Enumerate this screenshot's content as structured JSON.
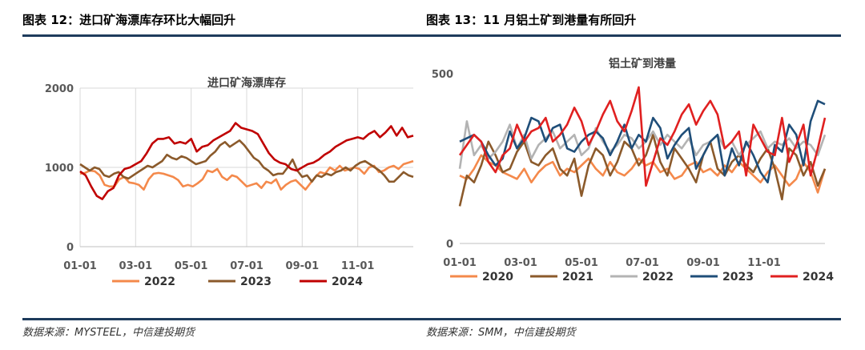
{
  "left": {
    "figure_title": "图表 12：进口矿海漂库存环比大幅回升",
    "source": "数据来源：MYSTEEL，中信建投期货"
  },
  "right": {
    "figure_title": "图表 13：11 月铝土矿到港量有所回升",
    "source": "数据来源：SMM，中信建投期货"
  },
  "chart_data": [
    {
      "type": "line",
      "title": "进口矿海漂库存",
      "xlabel": "",
      "ylabel": "",
      "ylim": [
        0,
        2000
      ],
      "yticks": [
        "0",
        "1000",
        "2000"
      ],
      "xticks": [
        "01-01",
        "03-01",
        "05-01",
        "07-01",
        "09-01",
        "11-01"
      ],
      "xrange": [
        1,
        52
      ],
      "grid": true,
      "legend": "bottom",
      "series": [
        {
          "name": "2022",
          "color": "#f4894b",
          "values": [
            920,
            930,
            960,
            950,
            900,
            780,
            760,
            760,
            850,
            880,
            810,
            800,
            780,
            720,
            850,
            920,
            930,
            920,
            900,
            880,
            840,
            760,
            780,
            760,
            800,
            850,
            960,
            940,
            980,
            880,
            840,
            900,
            880,
            820,
            760,
            780,
            800,
            740,
            820,
            800,
            850,
            720,
            780,
            820,
            840,
            780,
            720,
            800,
            880,
            940,
            920,
            1000,
            960,
            1020,
            960,
            980,
            1000,
            980,
            920,
            1000,
            1020,
            940,
            960,
            1000,
            1020,
            980,
            1040,
            1060,
            1080
          ]
        },
        {
          "name": "2023",
          "color": "#8b5a2b",
          "values": [
            1040,
            1000,
            960,
            1000,
            980,
            900,
            880,
            920,
            940,
            880,
            860,
            900,
            940,
            980,
            1020,
            1000,
            1040,
            1080,
            1160,
            1120,
            1100,
            1140,
            1120,
            1080,
            1040,
            1060,
            1080,
            1150,
            1200,
            1280,
            1320,
            1260,
            1300,
            1340,
            1280,
            1200,
            1120,
            1080,
            1000,
            960,
            900,
            920,
            920,
            1000,
            1100,
            960,
            880,
            900,
            820,
            900,
            880,
            920,
            900,
            940,
            960,
            1000,
            960,
            1020,
            1060,
            1080,
            1040,
            1000,
            960,
            900,
            820,
            820,
            880,
            940,
            900,
            880
          ]
        },
        {
          "name": "2024",
          "color": "#c00000",
          "values": [
            950,
            900,
            760,
            640,
            600,
            700,
            740,
            900,
            980,
            1000,
            1040,
            1080,
            1180,
            1300,
            1360,
            1360,
            1380,
            1300,
            1320,
            1300,
            1360,
            1200,
            1260,
            1280,
            1340,
            1380,
            1420,
            1460,
            1560,
            1500,
            1480,
            1460,
            1420,
            1300,
            1180,
            1100,
            1060,
            1040,
            980,
            960,
            1000,
            1040,
            1060,
            1100,
            1160,
            1200,
            1260,
            1300,
            1340,
            1360,
            1380,
            1360,
            1420,
            1460,
            1380,
            1440,
            1520,
            1400,
            1500,
            1380,
            1400
          ]
        }
      ]
    },
    {
      "type": "line",
      "title": "铝土矿到港量",
      "xlabel": "",
      "ylabel": "",
      "ylim": [
        0,
        500
      ],
      "yticks": [
        "0",
        "500"
      ],
      "xticks": [
        "01-01",
        "03-01",
        "05-01",
        "07-01",
        "09-01",
        "11-01"
      ],
      "xrange": [
        1,
        52
      ],
      "grid": false,
      "legend": "bottom",
      "series": [
        {
          "name": "2020",
          "color": "#f4894b",
          "values": [
            200,
            190,
            220,
            260,
            240,
            230,
            210,
            200,
            190,
            220,
            180,
            210,
            230,
            240,
            200,
            220,
            210,
            230,
            250,
            220,
            200,
            240,
            210,
            200,
            220,
            250,
            230,
            240,
            210,
            220,
            190,
            200,
            230,
            240,
            210,
            220,
            200,
            230,
            210,
            240,
            220,
            200,
            180,
            210,
            230,
            200,
            170,
            190,
            240,
            210,
            150,
            220
          ]
        },
        {
          "name": "2021",
          "color": "#8b5a2b",
          "values": [
            110,
            200,
            180,
            230,
            300,
            260,
            210,
            220,
            270,
            300,
            240,
            230,
            260,
            280,
            220,
            200,
            250,
            140,
            230,
            280,
            260,
            200,
            240,
            300,
            280,
            230,
            260,
            320,
            240,
            200,
            280,
            250,
            220,
            180,
            260,
            300,
            220,
            200,
            240,
            260,
            230,
            210,
            250,
            280,
            220,
            130,
            280,
            260,
            200,
            240,
            170,
            220
          ]
        },
        {
          "name": "2022",
          "color": "#b3b3b3",
          "values": [
            220,
            360,
            260,
            290,
            250,
            270,
            300,
            350,
            280,
            320,
            250,
            290,
            310,
            330,
            280,
            300,
            320,
            260,
            280,
            340,
            300,
            270,
            290,
            320,
            310,
            280,
            300,
            330,
            290,
            320,
            300,
            280,
            310,
            260,
            290,
            300,
            320,
            280,
            300,
            260,
            290,
            310,
            330,
            280,
            300,
            290,
            310,
            280,
            300,
            290,
            260,
            320
          ]
        },
        {
          "name": "2023",
          "color": "#1f4e79",
          "values": [
            300,
            310,
            320,
            300,
            260,
            230,
            250,
            330,
            280,
            310,
            370,
            360,
            300,
            340,
            350,
            280,
            270,
            300,
            320,
            330,
            310,
            260,
            300,
            350,
            280,
            320,
            300,
            370,
            340,
            250,
            290,
            320,
            340,
            220,
            260,
            300,
            320,
            200,
            280,
            230,
            300,
            260,
            210,
            180,
            290,
            270,
            350,
            320,
            230,
            360,
            420,
            410
          ]
        },
        {
          "name": "2024",
          "color": "#e02020",
          "values": [
            260,
            290,
            320,
            300,
            240,
            210,
            260,
            280,
            350,
            300,
            330,
            340,
            370,
            300,
            320,
            350,
            400,
            360,
            290,
            330,
            380,
            420,
            360,
            330,
            390,
            460,
            170,
            240,
            310,
            290,
            330,
            380,
            410,
            350,
            390,
            420,
            380,
            280,
            300,
            330,
            200,
            350,
            310,
            270,
            260,
            370,
            240,
            290,
            350,
            200,
            280,
            370
          ]
        }
      ]
    }
  ]
}
